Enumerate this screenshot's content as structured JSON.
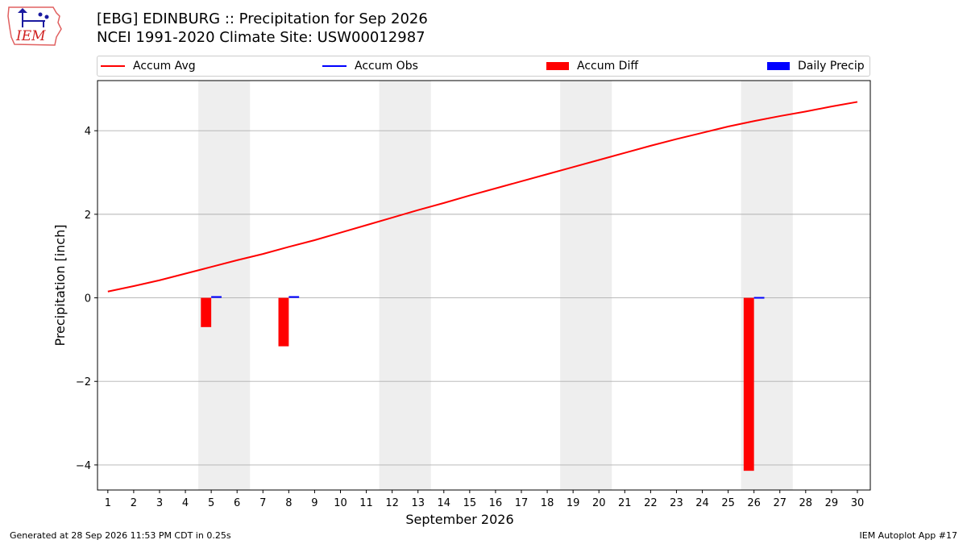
{
  "header": {
    "logo_text": "IEM",
    "title_line1": "[EBG] EDINBURG :: Precipitation for Sep 2026",
    "title_line2": "NCEI 1991-2020 Climate Site: USW00012987"
  },
  "footer": {
    "left": "Generated at 28 Sep 2026 11:53 PM CDT in 0.25s",
    "right": "IEM Autoplot App #17"
  },
  "colors": {
    "accum_avg": "#ff0000",
    "accum_obs": "#0000ff",
    "accum_diff": "#ff0000",
    "daily_precip": "#0000ff",
    "weekend_shade": "#eeeeee",
    "grid": "#b0b0b0"
  },
  "chart_data": {
    "type": "bar",
    "title": "[EBG] EDINBURG :: Precipitation for Sep 2026",
    "subtitle": "NCEI 1991-2020 Climate Site: USW00012987",
    "xlabel": "September 2026",
    "ylabel": "Precipitation [inch]",
    "x_ticks": [
      1,
      2,
      3,
      4,
      5,
      6,
      7,
      8,
      9,
      10,
      11,
      12,
      13,
      14,
      15,
      16,
      17,
      18,
      19,
      20,
      21,
      22,
      23,
      24,
      25,
      26,
      27,
      28,
      29,
      30
    ],
    "xlim": [
      0.6,
      30.5
    ],
    "ylim": [
      -4.6,
      5.2
    ],
    "y_ticks": [
      -4,
      -2,
      0,
      2,
      4
    ],
    "y_tick_labels": [
      "−4",
      "−2",
      "0",
      "2",
      "4"
    ],
    "grid": "horizontal",
    "legend_position": "top",
    "shaded_days": [
      [
        5,
        6
      ],
      [
        12,
        13
      ],
      [
        19,
        20
      ],
      [
        26,
        27
      ]
    ],
    "series": [
      {
        "name": "Accum Avg",
        "type": "line",
        "x": [
          1,
          2,
          3,
          4,
          5,
          6,
          7,
          8,
          9,
          10,
          11,
          12,
          13,
          14,
          15,
          16,
          17,
          18,
          19,
          20,
          21,
          22,
          23,
          24,
          25,
          26,
          27,
          28,
          29,
          30
        ],
        "values": [
          0.15,
          0.28,
          0.42,
          0.58,
          0.74,
          0.9,
          1.05,
          1.22,
          1.38,
          1.56,
          1.74,
          1.92,
          2.1,
          2.27,
          2.45,
          2.62,
          2.79,
          2.96,
          3.13,
          3.3,
          3.47,
          3.64,
          3.8,
          3.95,
          4.1,
          4.23,
          4.35,
          4.46,
          4.58,
          4.69
        ]
      },
      {
        "name": "Accum Obs",
        "type": "line",
        "x": [],
        "values": []
      },
      {
        "name": "Accum Diff",
        "type": "bar",
        "x": [
          5,
          8,
          26
        ],
        "values": [
          -0.7,
          -1.16,
          -4.14
        ]
      },
      {
        "name": "Daily Precip",
        "type": "bar",
        "x": [
          5,
          8,
          26
        ],
        "values": [
          0.04,
          0.04,
          0.02
        ]
      }
    ]
  }
}
